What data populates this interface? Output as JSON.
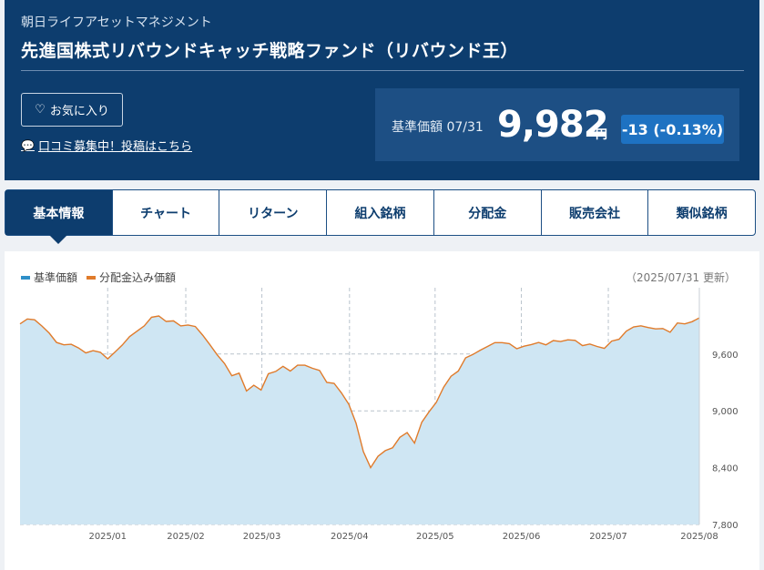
{
  "header": {
    "company": "朝日ライフアセットマネジメント",
    "fund_name": "先進国株式リバウンドキャッチ戦略ファンド（リバウンド王）",
    "favorite_label": "お気に入り",
    "review_link": "口コミ募集中！投稿はこちら"
  },
  "price": {
    "label": "基準価額 07/31",
    "value": "9,982",
    "unit": "円",
    "change": "-13 (-0.13%)"
  },
  "tabs": [
    {
      "label": "基本情報",
      "active": true
    },
    {
      "label": "チャート"
    },
    {
      "label": "リターン"
    },
    {
      "label": "組入銘柄"
    },
    {
      "label": "分配金"
    },
    {
      "label": "販売会社"
    },
    {
      "label": "類似銘柄"
    }
  ],
  "colors": {
    "header_bg": "#0d3d6e",
    "accent": "#1e72c2",
    "series_nav": "#2e8fc8",
    "series_dist": "#e07b2b",
    "area_fill": "#cfe6f3"
  },
  "chart_data": {
    "type": "area",
    "legend": [
      "基準価額",
      "分配金込み価額"
    ],
    "updated": "（2025/07/31 更新）",
    "x_tick_labels": [
      "2025/01",
      "2025/02",
      "2025/03",
      "2025/04",
      "2025/05",
      "2025/06",
      "2025/07",
      "2025/08"
    ],
    "y_tick_labels": [
      "9,600",
      "9,000",
      "8,400",
      "7,800"
    ],
    "ylim": [
      7800,
      10300
    ],
    "grid": true,
    "legend_position": "top-left",
    "series": [
      {
        "name": "基準価額",
        "values": [
          9918,
          9970,
          9962,
          9895,
          9820,
          9722,
          9697,
          9703,
          9664,
          9612,
          9636,
          9618,
          9550,
          9621,
          9695,
          9784,
          9840,
          9897,
          9988,
          10002,
          9944,
          9950,
          9897,
          9907,
          9890,
          9800,
          9697,
          9590,
          9499,
          9370,
          9398,
          9210,
          9270,
          9220,
          9391,
          9416,
          9470,
          9420,
          9482,
          9482,
          9450,
          9427,
          9300,
          9290,
          9190,
          9070,
          8870,
          8570,
          8400,
          8520,
          8580,
          8610,
          8720,
          8770,
          8660,
          8880,
          8990,
          9090,
          9250,
          9365,
          9420,
          9560,
          9595,
          9640,
          9680,
          9720,
          9720,
          9710,
          9656,
          9683,
          9700,
          9722,
          9697,
          9742,
          9732,
          9750,
          9744,
          9688,
          9706,
          9680,
          9660,
          9737,
          9756,
          9841,
          9887,
          9898,
          9880,
          9865,
          9869,
          9830,
          9928,
          9918,
          9941,
          9982
        ]
      },
      {
        "name": "分配金込み価額",
        "values": [
          9918,
          9970,
          9962,
          9895,
          9820,
          9722,
          9697,
          9703,
          9664,
          9612,
          9636,
          9618,
          9550,
          9621,
          9695,
          9784,
          9840,
          9897,
          9988,
          10002,
          9944,
          9950,
          9897,
          9907,
          9890,
          9800,
          9697,
          9590,
          9499,
          9370,
          9398,
          9210,
          9270,
          9220,
          9391,
          9416,
          9470,
          9420,
          9482,
          9482,
          9450,
          9427,
          9300,
          9290,
          9190,
          9070,
          8870,
          8570,
          8400,
          8520,
          8580,
          8610,
          8720,
          8770,
          8660,
          8880,
          8990,
          9090,
          9250,
          9365,
          9420,
          9560,
          9595,
          9640,
          9680,
          9720,
          9720,
          9710,
          9656,
          9683,
          9700,
          9722,
          9697,
          9742,
          9732,
          9750,
          9744,
          9688,
          9706,
          9680,
          9660,
          9737,
          9756,
          9841,
          9887,
          9898,
          9880,
          9865,
          9869,
          9830,
          9928,
          9918,
          9941,
          9982
        ]
      }
    ]
  }
}
